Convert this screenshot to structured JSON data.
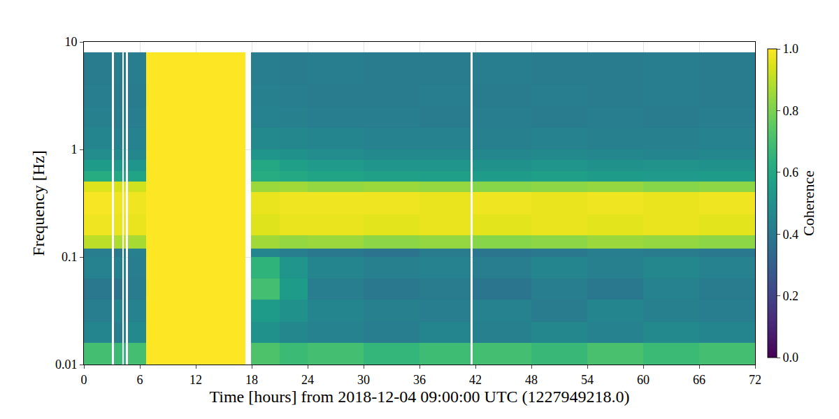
{
  "chart_data": {
    "type": "heatmap",
    "x_label": "Time [hours] from 2018-12-04 09:00:00 UTC (1227949218.0)",
    "y_label": "Frequency [Hz]",
    "x": [
      0,
      3,
      3.2,
      4.1,
      4.3,
      4.5,
      4.7,
      6.7,
      17.3,
      17.9,
      21,
      24,
      30,
      36,
      41.5,
      41.7,
      48,
      54,
      60,
      66,
      72
    ],
    "y": [
      0.01,
      0.016,
      0.025,
      0.04,
      0.063,
      0.1,
      0.12,
      0.16,
      0.25,
      0.4,
      0.5,
      0.63,
      0.8,
      1,
      1.6,
      2.5,
      4,
      8
    ],
    "cells": [
      [
        0.7,
        null,
        0.68,
        null,
        0.66,
        null,
        0.7,
        1,
        null,
        0.72,
        0.68,
        0.7,
        0.66,
        0.69,
        null,
        0.7,
        0.67,
        0.71,
        0.68,
        0.7
      ],
      [
        0.45,
        null,
        0.42,
        null,
        0.44,
        null,
        0.47,
        1,
        null,
        0.5,
        0.46,
        0.44,
        0.42,
        0.45,
        null,
        0.43,
        0.46,
        0.44,
        0.47,
        0.45
      ],
      [
        0.42,
        null,
        0.45,
        null,
        0.4,
        null,
        0.44,
        1,
        null,
        0.55,
        0.5,
        0.45,
        0.43,
        0.42,
        null,
        0.44,
        0.41,
        0.45,
        0.43,
        0.42
      ],
      [
        0.4,
        null,
        0.38,
        null,
        0.42,
        null,
        0.41,
        1,
        null,
        0.7,
        0.55,
        0.42,
        0.4,
        0.41,
        null,
        0.39,
        0.42,
        0.4,
        0.44,
        0.41
      ],
      [
        0.44,
        null,
        0.43,
        null,
        0.45,
        null,
        0.42,
        1,
        null,
        0.65,
        0.52,
        0.45,
        0.43,
        0.44,
        null,
        0.42,
        0.45,
        0.43,
        0.46,
        0.44
      ],
      [
        0.42,
        null,
        0.4,
        null,
        0.41,
        null,
        0.43,
        1,
        null,
        0.45,
        0.42,
        0.4,
        0.38,
        0.41,
        null,
        0.39,
        0.4,
        0.42,
        0.41,
        0.4
      ],
      [
        0.9,
        null,
        0.88,
        null,
        0.9,
        null,
        0.87,
        1,
        null,
        0.86,
        0.84,
        0.85,
        0.83,
        0.84,
        null,
        0.82,
        0.83,
        0.85,
        0.84,
        0.83
      ],
      [
        0.98,
        null,
        0.97,
        null,
        0.98,
        null,
        0.97,
        1,
        null,
        0.95,
        0.97,
        0.97,
        0.96,
        0.97,
        null,
        0.96,
        0.97,
        0.96,
        0.97,
        0.96
      ],
      [
        0.99,
        null,
        0.98,
        null,
        0.99,
        null,
        0.98,
        1,
        null,
        0.97,
        0.98,
        0.98,
        0.98,
        0.97,
        null,
        0.98,
        0.97,
        0.98,
        0.97,
        0.98
      ],
      [
        0.95,
        null,
        0.94,
        null,
        0.95,
        null,
        0.93,
        1,
        null,
        0.85,
        0.86,
        0.84,
        0.85,
        0.84,
        null,
        0.82,
        0.83,
        0.84,
        0.82,
        0.83
      ],
      [
        0.62,
        null,
        0.6,
        null,
        0.6,
        null,
        0.58,
        1,
        null,
        0.62,
        0.6,
        0.58,
        0.57,
        0.56,
        null,
        0.55,
        0.56,
        0.55,
        0.54,
        0.55
      ],
      [
        0.55,
        null,
        0.53,
        null,
        0.54,
        null,
        0.52,
        1,
        null,
        0.6,
        0.56,
        0.54,
        0.52,
        0.52,
        null,
        0.5,
        0.52,
        0.5,
        0.51,
        0.5
      ],
      [
        0.48,
        null,
        0.47,
        null,
        0.49,
        null,
        0.46,
        1,
        null,
        0.52,
        0.5,
        0.48,
        0.47,
        0.47,
        null,
        0.46,
        0.47,
        0.46,
        0.45,
        0.46
      ],
      [
        0.45,
        null,
        0.44,
        null,
        0.46,
        null,
        0.44,
        1,
        null,
        0.47,
        0.46,
        0.45,
        0.44,
        0.44,
        null,
        0.43,
        0.44,
        0.43,
        0.43,
        0.44
      ],
      [
        0.43,
        null,
        0.42,
        null,
        0.43,
        null,
        0.42,
        1,
        null,
        0.44,
        0.43,
        0.42,
        0.42,
        0.41,
        null,
        0.42,
        0.41,
        0.42,
        0.41,
        0.42
      ],
      [
        0.42,
        null,
        0.41,
        null,
        0.42,
        null,
        0.41,
        1,
        null,
        0.43,
        0.42,
        0.41,
        0.41,
        0.42,
        null,
        0.41,
        0.42,
        0.41,
        0.42,
        0.41
      ],
      [
        0.41,
        null,
        0.42,
        null,
        0.41,
        null,
        0.42,
        1,
        null,
        0.42,
        0.41,
        0.42,
        0.41,
        0.41,
        null,
        0.42,
        0.41,
        0.41,
        0.42,
        0.41
      ]
    ],
    "color": "Viridis",
    "colorbar": {
      "title": "Coherence",
      "range": [
        0,
        1
      ],
      "ticks": [
        {
          "value": 0,
          "label": "0.0"
        },
        {
          "value": 0.2,
          "label": "0.2"
        },
        {
          "value": 0.4,
          "label": "0.4"
        },
        {
          "value": 0.6,
          "label": "0.6"
        },
        {
          "value": 0.8,
          "label": "0.8"
        },
        {
          "value": 1,
          "label": "1.0"
        }
      ]
    },
    "xlim": [
      0,
      72
    ],
    "xticks": [
      0,
      6,
      12,
      18,
      24,
      30,
      36,
      42,
      48,
      54,
      60,
      66,
      72
    ],
    "ylim": [
      0.01,
      10
    ],
    "yticks": [
      0.01,
      0.1,
      1,
      10
    ],
    "log": "y",
    "grid": true
  }
}
